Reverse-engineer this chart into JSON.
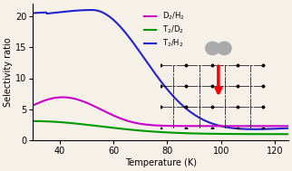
{
  "title": "",
  "xlabel": "Temperature (K)",
  "ylabel": "Selectivity ratio",
  "xlim": [
    30,
    125
  ],
  "ylim": [
    0,
    22
  ],
  "yticks": [
    0,
    5,
    10,
    15,
    20
  ],
  "xticks": [
    40,
    60,
    80,
    100,
    120
  ],
  "legend": [
    {
      "label": "D$_2$/H$_2$",
      "color": "#cc00cc"
    },
    {
      "label": "T$_2$/D$_2$",
      "color": "#009900"
    },
    {
      "label": "T$_2$/H$_2$",
      "color": "#2222cc"
    }
  ],
  "bg_color": "#f5f0e8",
  "line_width": 1.5
}
